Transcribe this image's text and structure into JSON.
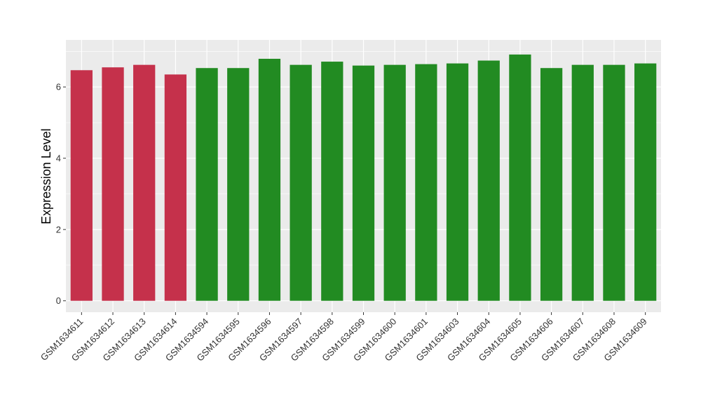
{
  "chart_data": {
    "type": "bar",
    "title": "",
    "xlabel": "",
    "ylabel": "Expression Level",
    "ylim": [
      -0.32,
      7.32
    ],
    "yticks": [
      0,
      2,
      4,
      6
    ],
    "grid": true,
    "categories": [
      "GSM1634611",
      "GSM1634612",
      "GSM1634613",
      "GSM1634614",
      "GSM1634594",
      "GSM1634595",
      "GSM1634596",
      "GSM1634597",
      "GSM1634598",
      "GSM1634599",
      "GSM1634600",
      "GSM1634601",
      "GSM1634603",
      "GSM1634604",
      "GSM1634605",
      "GSM1634606",
      "GSM1634607",
      "GSM1634608",
      "GSM1634609"
    ],
    "values": [
      6.47,
      6.55,
      6.62,
      6.35,
      6.53,
      6.53,
      6.79,
      6.62,
      6.71,
      6.6,
      6.62,
      6.64,
      6.66,
      6.74,
      6.91,
      6.53,
      6.62,
      6.62,
      6.66
    ],
    "groups": [
      "a",
      "a",
      "a",
      "a",
      "b",
      "b",
      "b",
      "b",
      "b",
      "b",
      "b",
      "b",
      "b",
      "b",
      "b",
      "b",
      "b",
      "b",
      "b"
    ],
    "colors": {
      "a": "#c5314b",
      "b": "#228b22"
    },
    "panel_background": "#ebebeb",
    "gridline_color": "#ffffff"
  }
}
